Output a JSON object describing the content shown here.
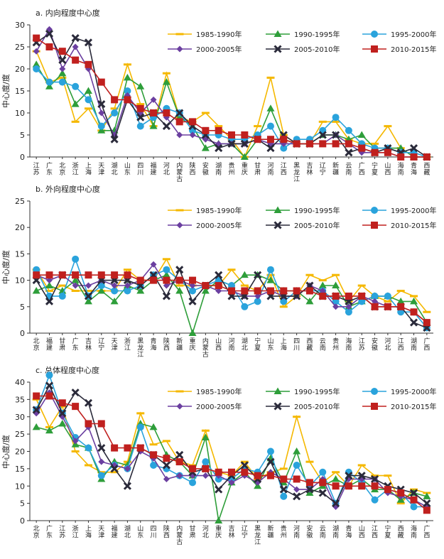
{
  "colors": {
    "1985-1990年": "#f5b800",
    "1990-1995年": "#2e9e3a",
    "1995-2000年": "#2aa3dc",
    "2000-2005年": "#6b3fa0",
    "2005-2010年": "#2a2a3a",
    "2010-2015年": "#c0201e"
  },
  "markers": {
    "1985-1990年": "dash",
    "1990-1995年": "triangle",
    "1995-2000年": "circle",
    "2000-2005年": "diamond",
    "2005-2010年": "cross",
    "2010-2015年": "square"
  },
  "chart_data": [
    {
      "type": "line",
      "title": "a. 内向程度中心度",
      "ylabel": "中心度/度",
      "ylim": [
        0,
        30
      ],
      "yticks": [
        0,
        5,
        10,
        15,
        20,
        25,
        30
      ],
      "legend_position": "top-right",
      "categories": [
        "江苏",
        "广东",
        "北京",
        "浙江",
        "上海",
        "天津",
        "湖北",
        "山东",
        "四川",
        "福建",
        "河北",
        "内蒙古",
        "陕西",
        "安徽",
        "湖南",
        "贵州",
        "重庆",
        "甘肃",
        "河南",
        "江西",
        "黑龙江",
        "吉林",
        "辽宁",
        "新疆",
        "云南",
        "广西",
        "宁夏",
        "山西",
        "海南",
        "青海",
        "西藏"
      ],
      "series": [
        {
          "name": "1985-1990年",
          "values": [
            24,
            17,
            18,
            8,
            11,
            6,
            11,
            21,
            12,
            7,
            19,
            9,
            8,
            10,
            7,
            4,
            0,
            7,
            18,
            5,
            3,
            3,
            8,
            8,
            4,
            3,
            3,
            7,
            2,
            0,
            0
          ]
        },
        {
          "name": "1990-1995年",
          "values": [
            21,
            16,
            19,
            12,
            15,
            6,
            6,
            18,
            16,
            7,
            17,
            9,
            7,
            2,
            3,
            3,
            0,
            4,
            11,
            4,
            3,
            3,
            5,
            5,
            4,
            5,
            2,
            2,
            2,
            0,
            0
          ]
        },
        {
          "name": "1995-2000年",
          "values": [
            20,
            17,
            17,
            16,
            13,
            7,
            10,
            15,
            7,
            9,
            11,
            10,
            6,
            5,
            5,
            4,
            4,
            5,
            7,
            2,
            4,
            4,
            6,
            9,
            6,
            3,
            2,
            2,
            1,
            1,
            0
          ]
        },
        {
          "name": "2000-2005年",
          "values": [
            24,
            29,
            20,
            25,
            20,
            10,
            5,
            14,
            10,
            13,
            9,
            5,
            5,
            4,
            3,
            3,
            3,
            4,
            3,
            3,
            3,
            3,
            3,
            5,
            3,
            1,
            1,
            1,
            0,
            0,
            0
          ]
        },
        {
          "name": "2005-2010年",
          "values": [
            26,
            28,
            22,
            27,
            26,
            12,
            4,
            13,
            9,
            10,
            7,
            10,
            7,
            5,
            2,
            3,
            3,
            4,
            2,
            5,
            3,
            3,
            5,
            5,
            1,
            2,
            1,
            2,
            1,
            2,
            0
          ]
        },
        {
          "name": "2010-2015年",
          "values": [
            27,
            25,
            24,
            22,
            21,
            17,
            13,
            13,
            11,
            10,
            10,
            8,
            8,
            6,
            6,
            5,
            5,
            4,
            4,
            4,
            3,
            3,
            3,
            3,
            3,
            2,
            1,
            1,
            0,
            0,
            0
          ]
        }
      ]
    },
    {
      "type": "line",
      "title": "b. 外向程度中心度",
      "ylabel": "中心度/度",
      "ylim": [
        0,
        25
      ],
      "yticks": [
        0,
        5,
        10,
        15,
        20,
        25
      ],
      "legend_position": "top-right",
      "categories": [
        "北京",
        "福建",
        "甘肃",
        "广东",
        "吉林",
        "辽宁",
        "天津",
        "浙江",
        "黑龙江",
        "青海",
        "陕西",
        "新疆",
        "重庆",
        "内蒙古",
        "山西",
        "河南",
        "湖北",
        "宁夏",
        "山东",
        "上海",
        "四川",
        "西藏",
        "云南",
        "贵州",
        "海南",
        "江苏",
        "安徽",
        "河北",
        "江西",
        "湖南",
        "广西"
      ],
      "series": [
        {
          "name": "1985-1990年",
          "values": [
            12,
            8,
            9,
            8,
            8,
            8,
            8,
            12,
            10,
            10,
            14,
            9,
            9,
            9,
            9,
            12,
            9,
            8,
            11,
            5,
            7,
            11,
            10,
            11,
            6,
            9,
            7,
            6,
            8,
            7,
            4
          ]
        },
        {
          "name": "1990-1995年",
          "values": [
            8,
            9,
            8,
            10,
            6,
            8,
            6,
            9,
            8,
            10,
            11,
            8,
            0,
            8,
            10,
            9,
            11,
            11,
            10,
            8,
            8,
            6,
            9,
            9,
            5,
            6,
            7,
            7,
            6,
            6,
            2
          ]
        },
        {
          "name": "1995-2000年",
          "values": [
            12,
            7,
            7,
            14,
            7,
            9,
            8,
            8,
            9,
            11,
            12,
            10,
            8,
            9,
            10,
            9,
            5,
            6,
            12,
            6,
            8,
            8,
            8,
            6,
            4,
            6,
            7,
            7,
            4,
            4,
            1
          ]
        },
        {
          "name": "2000-2005年",
          "values": [
            11,
            10,
            11,
            9,
            9,
            10,
            9,
            9,
            10,
            13,
            9,
            10,
            9,
            9,
            8,
            8,
            7,
            7,
            8,
            7,
            7,
            9,
            8,
            5,
            5,
            7,
            6,
            5,
            5,
            4,
            2
          ]
        },
        {
          "name": "2005-2010年",
          "values": [
            10,
            6,
            11,
            11,
            7,
            10,
            10,
            10,
            9,
            11,
            7,
            12,
            6,
            9,
            11,
            7,
            7,
            11,
            7,
            7,
            7,
            9,
            7,
            7,
            6,
            7,
            5,
            5,
            5,
            2,
            1
          ]
        },
        {
          "name": "2010-2015年",
          "values": [
            11,
            11,
            11,
            11,
            11,
            11,
            11,
            11,
            10,
            10,
            10,
            10,
            10,
            9,
            9,
            8,
            8,
            8,
            8,
            8,
            8,
            8,
            7,
            7,
            7,
            7,
            5,
            5,
            5,
            4,
            2
          ]
        }
      ]
    },
    {
      "type": "line",
      "title": "c. 总体程度中心度",
      "ylabel": "中心度/度",
      "ylim": [
        0,
        40
      ],
      "yticks": [
        0,
        5,
        10,
        15,
        20,
        25,
        30,
        35,
        40
      ],
      "legend_position": "top-right",
      "categories": [
        "北京",
        "广东",
        "江苏",
        "浙江",
        "上海",
        "天津",
        "福建",
        "湖北",
        "山东",
        "四川",
        "陕西",
        "内蒙古",
        "甘肃",
        "河北",
        "重庆",
        "吉林",
        "辽宁",
        "黑龙江",
        "新疆",
        "贵州",
        "河南",
        "安徽",
        "云南",
        "湖南",
        "青海",
        "山西",
        "江西",
        "宁夏",
        "西藏",
        "海南",
        "广西"
      ],
      "series": [
        {
          "name": "1985-1990年",
          "values": [
            35,
            27,
            33,
            20,
            16,
            14,
            14,
            17,
            31,
            22,
            23,
            17,
            16,
            26,
            14,
            13,
            17,
            12,
            14,
            15,
            30,
            17,
            11,
            14,
            10,
            16,
            13,
            13,
            5,
            9,
            8
          ]
        },
        {
          "name": "1990-1995年",
          "values": [
            27,
            26,
            28,
            22,
            21,
            12,
            17,
            16,
            28,
            27,
            19,
            17,
            13,
            24,
            0,
            11,
            14,
            10,
            18,
            11,
            20,
            8,
            10,
            12,
            10,
            12,
            9,
            9,
            6,
            8,
            7
          ]
        },
        {
          "name": "1995-2000年",
          "values": [
            32,
            42,
            31,
            24,
            21,
            13,
            16,
            15,
            27,
            16,
            15,
            13,
            11,
            17,
            12,
            12,
            15,
            14,
            20,
            7,
            16,
            10,
            14,
            5,
            14,
            11,
            6,
            9,
            8,
            4,
            4
          ]
        },
        {
          "name": "2000-2005年",
          "values": [
            31,
            37,
            30,
            23,
            27,
            17,
            16,
            15,
            20,
            18,
            12,
            13,
            13,
            13,
            13,
            11,
            13,
            11,
            14,
            12,
            9,
            9,
            12,
            4,
            12,
            12,
            12,
            8,
            7,
            6,
            4
          ]
        },
        {
          "name": "2005-2010年",
          "values": [
            32,
            39,
            31,
            37,
            34,
            21,
            15,
            10,
            21,
            19,
            16,
            19,
            14,
            15,
            9,
            13,
            16,
            12,
            17,
            9,
            7,
            9,
            8,
            5,
            13,
            13,
            12,
            10,
            9,
            8,
            5
          ]
        },
        {
          "name": "2010-2015年",
          "values": [
            36,
            36,
            34,
            33,
            28,
            28,
            21,
            21,
            21,
            19,
            18,
            17,
            15,
            15,
            14,
            14,
            14,
            13,
            13,
            12,
            12,
            11,
            11,
            10,
            10,
            10,
            10,
            9,
            8,
            6,
            3
          ]
        }
      ]
    }
  ]
}
